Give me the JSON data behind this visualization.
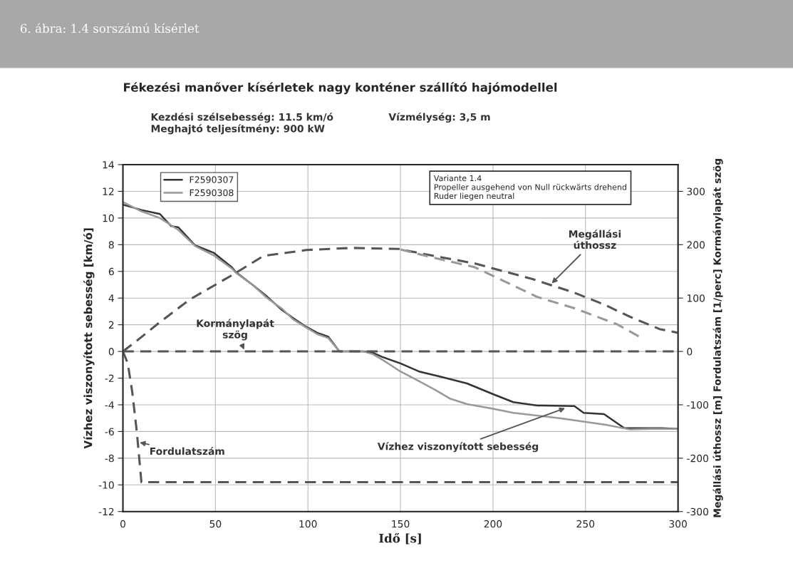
{
  "chart_data": {
    "type": "line",
    "title": "Fékezési manőver kísérletek nagy konténer szállító hajómodellel",
    "xlabel": "Idő [s]",
    "ylabel": "Vízhez viszonyított sebesség [km/ó]",
    "y2label": "Megállási úthossz [m] Fordulatszám [1/perc] Kormánylapát szög",
    "xlim": [
      0,
      300
    ],
    "xticks": [
      0,
      50,
      100,
      150,
      200,
      250,
      300
    ],
    "ylim": [
      -12,
      14
    ],
    "yticks": [
      -12,
      -10,
      -8,
      -6,
      -4,
      -2,
      0,
      2,
      4,
      6,
      8,
      10,
      12,
      14
    ],
    "y2lim": [
      -300,
      350
    ],
    "y2ticks": [
      -300,
      -200,
      -100,
      0,
      100,
      200,
      300
    ],
    "grid": true,
    "legend": "top left",
    "line_style": "solid",
    "series": [
      {
        "name": "F2590307",
        "color": "#333333",
        "x": [
          0,
          10,
          20,
          26,
          30,
          39,
          49,
          59,
          61,
          70,
          78,
          86,
          92,
          99,
          105,
          111,
          117,
          124,
          130,
          135,
          140,
          150,
          160,
          172,
          186,
          200,
          211,
          224,
          244,
          249,
          260,
          271,
          280,
          291,
          300
        ],
        "values": [
          11.0,
          10.6,
          10.3,
          9.4,
          9.3,
          7.95,
          7.4,
          6.3,
          5.95,
          5.0,
          4.1,
          3.1,
          2.5,
          1.85,
          1.4,
          1.1,
          0.0,
          0.0,
          0.0,
          -0.1,
          -0.4,
          -0.9,
          -1.5,
          -1.9,
          -2.4,
          -3.2,
          -3.8,
          -4.05,
          -4.1,
          -4.6,
          -4.7,
          -5.75,
          -5.75,
          -5.75,
          -5.8
        ]
      },
      {
        "name": "F2590308",
        "color": "#999999",
        "x": [
          0,
          10,
          20,
          30,
          39,
          49,
          59,
          61,
          70,
          78,
          86,
          92,
          99,
          105,
          111,
          117,
          124,
          130,
          135,
          140,
          150,
          161,
          169,
          177,
          186,
          200,
          211,
          236,
          261,
          274,
          285,
          300
        ],
        "values": [
          11.2,
          10.5,
          10.0,
          9.1,
          7.9,
          7.2,
          6.2,
          5.9,
          5.0,
          4.0,
          3.2,
          2.4,
          1.8,
          1.3,
          1.0,
          0.0,
          0.0,
          0.0,
          -0.2,
          -0.6,
          -1.5,
          -2.3,
          -2.9,
          -3.55,
          -3.95,
          -4.3,
          -4.6,
          -5.0,
          -5.5,
          -5.85,
          -5.8,
          -5.8
        ]
      },
      {
        "color": "#555555",
        "axis": "y2",
        "line_style": "dashed",
        "x": [
          0,
          7.5,
          20,
          36,
          50,
          60,
          76,
          99,
          124,
          149,
          165,
          190,
          221,
          244,
          260,
          274,
          290,
          300
        ],
        "values": [
          0,
          20,
          55,
          97,
          125,
          145,
          179,
          190,
          194,
          192,
          181,
          165,
          136,
          110,
          88,
          65,
          42,
          35
        ]
      },
      {
        "color": "#999999",
        "axis": "y2",
        "line_style": "dashed",
        "x": [
          150,
          165,
          190,
          210,
          224,
          244,
          267,
          280
        ],
        "values": [
          191,
          178,
          158,
          125,
          102,
          81,
          51,
          26
        ]
      },
      {
        "color": "#555555",
        "axis": "y2",
        "line_style": "dashed",
        "x": [
          0,
          2.6,
          5,
          7.5,
          10,
          50,
          100,
          150,
          200,
          250,
          300
        ],
        "values": [
          0,
          -22,
          -75,
          -150,
          -245,
          -245,
          -245,
          -245,
          -245,
          -245,
          -245
        ]
      },
      {
        "color": "#555555",
        "axis": "y2",
        "line_style": "dashed",
        "x": [
          0,
          300
        ],
        "values": [
          0,
          0
        ]
      }
    ],
    "annotations": [
      "6. ábra: 1.4 sorszámú kísérlet",
      "Kezdési szélsebesség: 11.5 km/ó\nMeghajtó teljesítmény: 900 kW",
      "Vízmélység: 3,5 m",
      "Variante 1.4\nPropeller ausgehend von Null rückwärts drehend\nRuder liegen neutral",
      {
        "text": "Megállási\núthossz",
        "x": 231,
        "y": 5.0
      },
      {
        "text": "Kormánylapát\nszög",
        "x": 66,
        "y": 0
      },
      {
        "text": "Fordulatszám",
        "x": 8,
        "y": -6.8
      },
      {
        "text": "Vízhez viszonyított sebesség",
        "x": 240,
        "y": -4.2
      }
    ]
  }
}
